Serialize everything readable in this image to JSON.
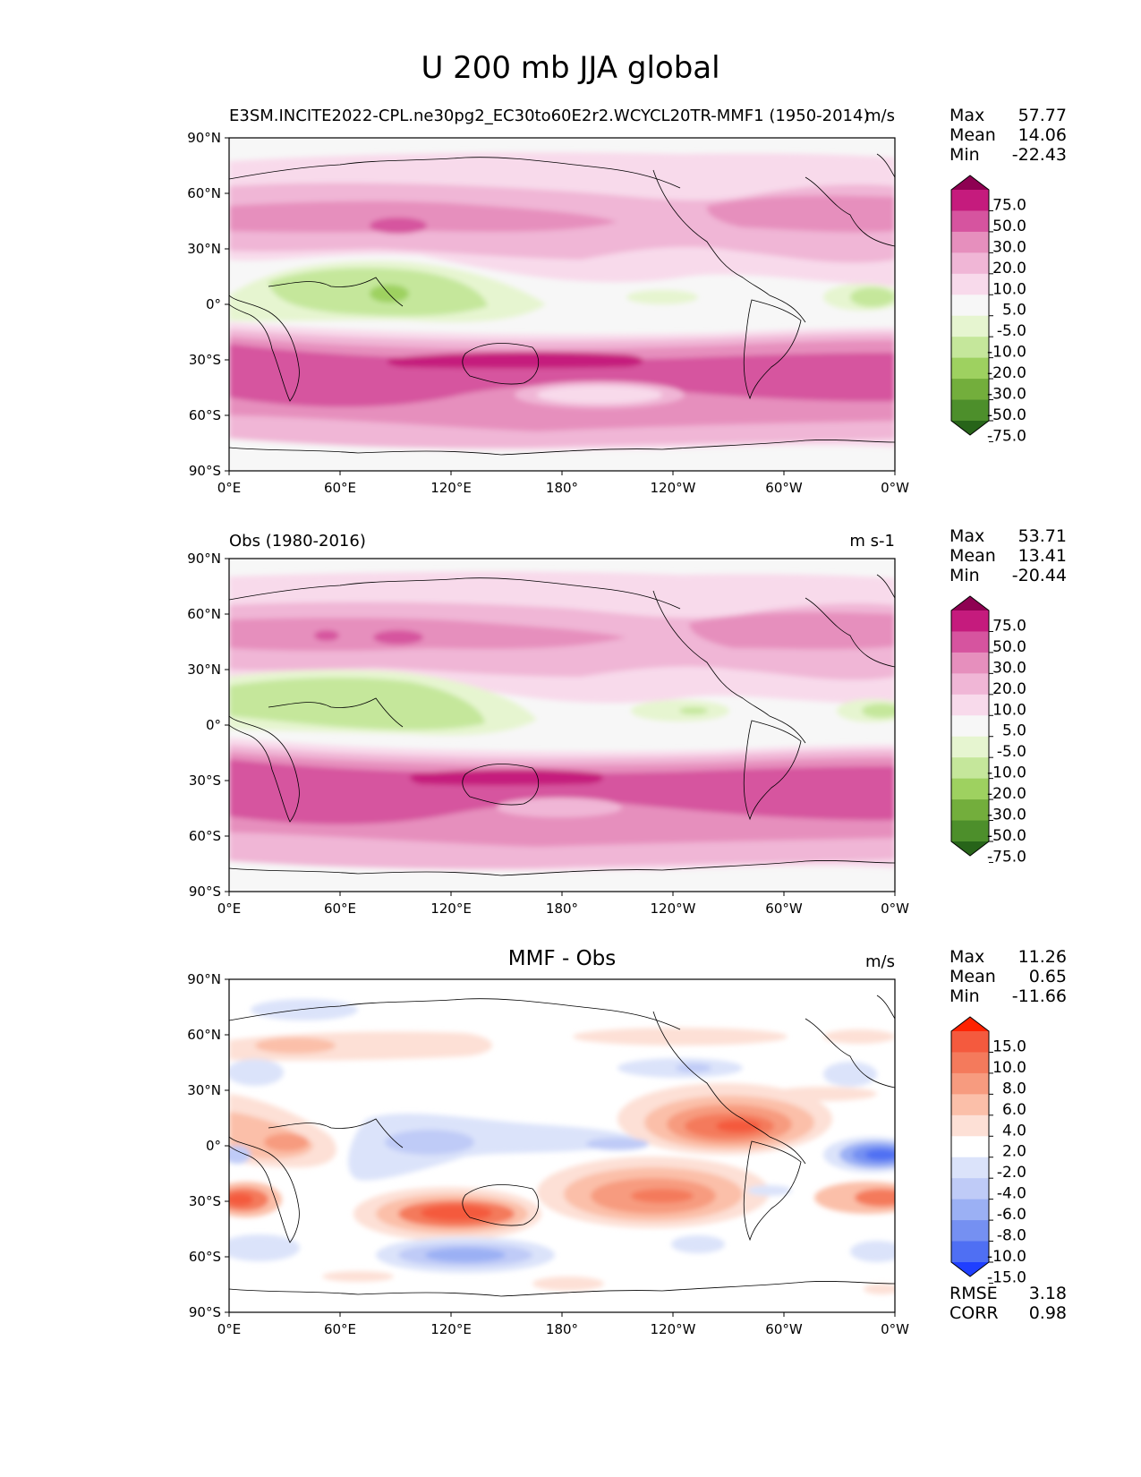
{
  "figure_title": "U 200 mb JJA global",
  "panels": [
    {
      "title": "E3SM.INCITE2022-CPL.ne30pg2_EC30to60E2r2.WCYCL20TR-MMF1 (1950-2014)",
      "units": "m/s",
      "stats": [
        {
          "label": "Max",
          "value": "57.77"
        },
        {
          "label": "Mean",
          "value": "14.06"
        },
        {
          "label": "Min",
          "value": "-22.43"
        }
      ]
    },
    {
      "title": "Obs (1980-2016)",
      "units": "m s-1",
      "stats": [
        {
          "label": "Max",
          "value": "53.71"
        },
        {
          "label": "Mean",
          "value": "13.41"
        },
        {
          "label": "Min",
          "value": "-20.44"
        }
      ]
    },
    {
      "title": "MMF - Obs",
      "units": "m/s",
      "stats": [
        {
          "label": "Max",
          "value": "11.26"
        },
        {
          "label": "Mean",
          "value": "0.65"
        },
        {
          "label": "Min",
          "value": "-11.66"
        }
      ],
      "metrics": [
        {
          "label": "RMSE",
          "value": "3.18"
        },
        {
          "label": "CORR",
          "value": "0.98"
        }
      ]
    }
  ],
  "axes": {
    "lat_ticks": [
      "90°N",
      "60°N",
      "30°N",
      "0°",
      "30°S",
      "60°S",
      "90°S"
    ],
    "lon_ticks": [
      "0°E",
      "60°E",
      "120°E",
      "180°",
      "120°W",
      "60°W",
      "0°W"
    ]
  },
  "colorbars": {
    "field": {
      "levels": [
        "75.0",
        "50.0",
        "30.0",
        "20.0",
        "10.0",
        "5.0",
        "-5.0",
        "-10.0",
        "-20.0",
        "-30.0",
        "-50.0",
        "-75.0"
      ],
      "colors": [
        "#8e0152",
        "#c51b7d",
        "#d6549f",
        "#e68fbd",
        "#f0b6d6",
        "#f8daeb",
        "#f7f7f7",
        "#e6f5d0",
        "#c5e79b",
        "#9ed160",
        "#73ae3c",
        "#4d8f2b",
        "#276419"
      ]
    },
    "diff": {
      "levels": [
        "15.0",
        "10.0",
        "8.0",
        "6.0",
        "4.0",
        "2.0",
        "-2.0",
        "-4.0",
        "-6.0",
        "-8.0",
        "-10.0",
        "-15.0"
      ],
      "colors": [
        "#ff2200",
        "#f45a3e",
        "#f47a5c",
        "#f79b7f",
        "#fbbfa9",
        "#fde0d6",
        "#ffffff",
        "#dbe3fa",
        "#bfcbf7",
        "#9bb0f4",
        "#7590f2",
        "#4f6ff3",
        "#1f3fff"
      ]
    }
  },
  "chart_data": [
    {
      "type": "heatmap",
      "title": "E3SM.INCITE2022-CPL.ne30pg2_EC30to60E2r2.WCYCL20TR-MMF1 (1950-2014)",
      "variable": "U 200 mb JJA global",
      "units": "m/s",
      "xlim": [
        0,
        360
      ],
      "ylim": [
        -90,
        90
      ],
      "max": 57.77,
      "mean": 14.06,
      "min": -22.43,
      "features": [
        {
          "lon": 170,
          "lat": -28,
          "value": 57
        },
        {
          "lon": 90,
          "lat": 45,
          "value": 40
        },
        {
          "lon": 290,
          "lat": 45,
          "value": 30
        },
        {
          "lon": 60,
          "lat": 10,
          "value": -22
        },
        {
          "lon": 340,
          "lat": 2,
          "value": -12
        }
      ]
    },
    {
      "type": "heatmap",
      "title": "Obs (1980-2016)",
      "variable": "U 200 mb JJA global",
      "units": "m s-1",
      "xlim": [
        0,
        360
      ],
      "ylim": [
        -90,
        90
      ],
      "max": 53.71,
      "mean": 13.41,
      "min": -20.44,
      "features": [
        {
          "lon": 165,
          "lat": -28,
          "value": 53
        },
        {
          "lon": 90,
          "lat": 42,
          "value": 40
        },
        {
          "lon": 285,
          "lat": 45,
          "value": 30
        },
        {
          "lon": 60,
          "lat": 8,
          "value": -20
        },
        {
          "lon": 250,
          "lat": 5,
          "value": -11
        }
      ]
    },
    {
      "type": "heatmap",
      "title": "MMF - Obs",
      "variable": "U 200 mb JJA global",
      "units": "m/s",
      "xlim": [
        0,
        360
      ],
      "ylim": [
        -90,
        90
      ],
      "max": 11.26,
      "mean": 0.65,
      "min": -11.66,
      "rmse": 3.18,
      "corr": 0.98,
      "features": [
        {
          "lon": 290,
          "lat": 10,
          "value": 10
        },
        {
          "lon": 230,
          "lat": -25,
          "value": 9
        },
        {
          "lon": 130,
          "lat": -30,
          "value": 10
        },
        {
          "lon": 10,
          "lat": -25,
          "value": 8
        },
        {
          "lon": 350,
          "lat": -3,
          "value": -11
        },
        {
          "lon": 140,
          "lat": -55,
          "value": -8
        },
        {
          "lon": 120,
          "lat": 0,
          "value": -6
        }
      ]
    }
  ]
}
